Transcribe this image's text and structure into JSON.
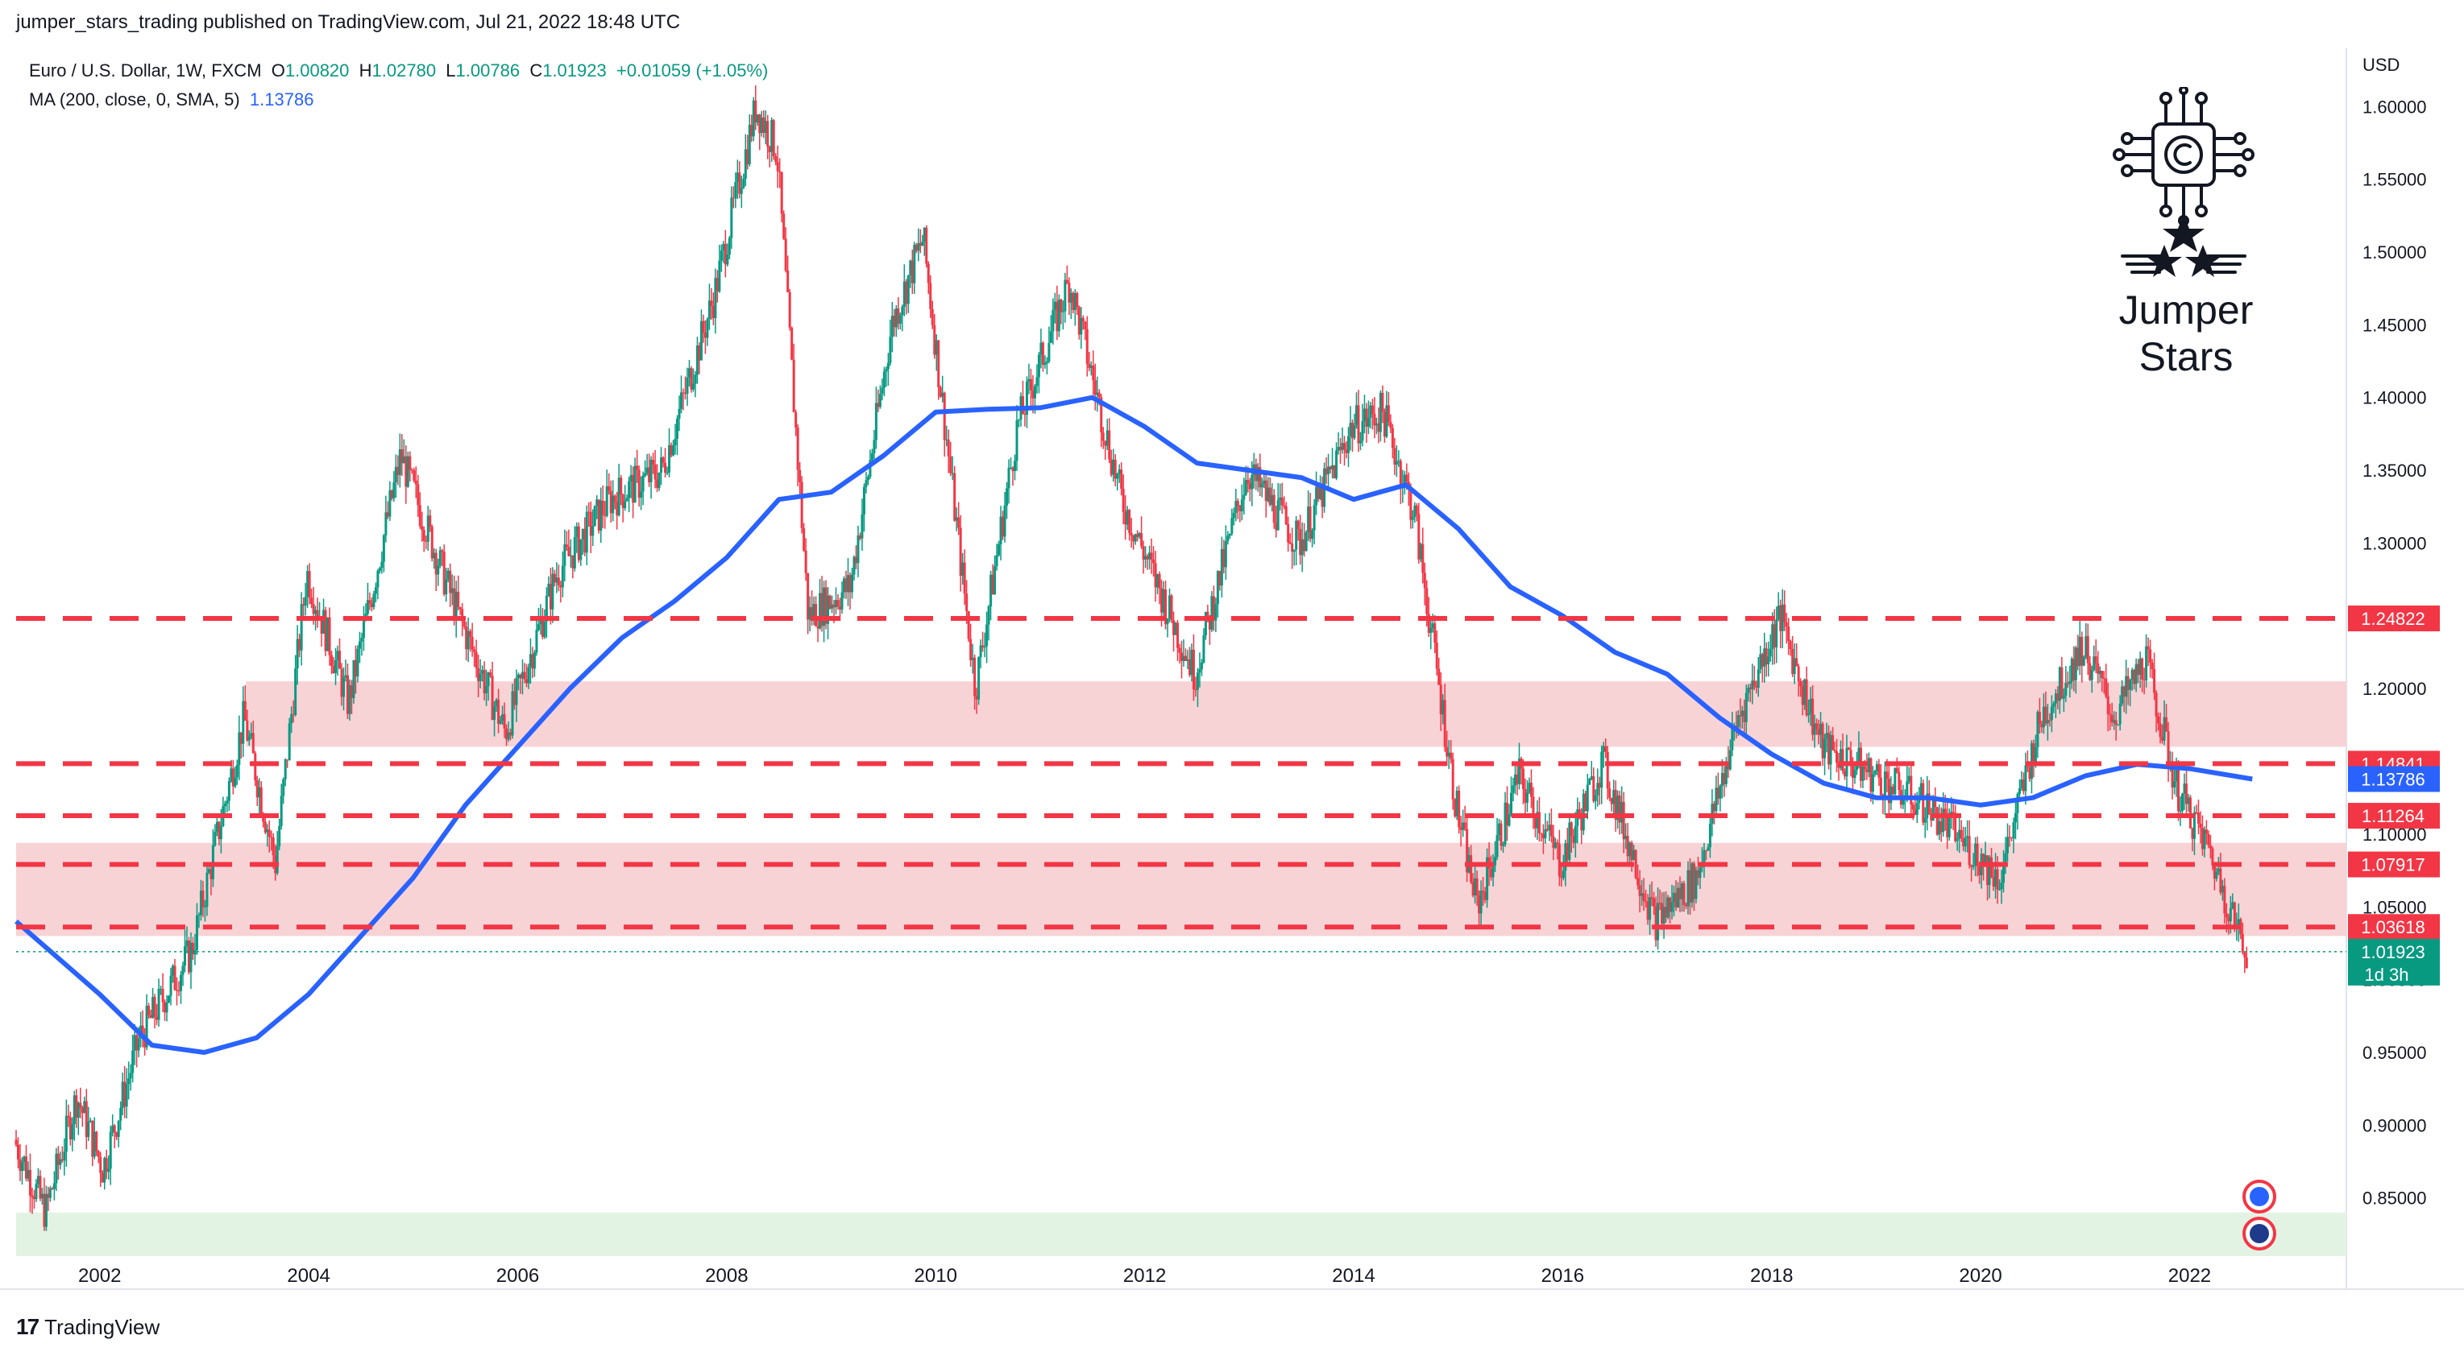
{
  "header": {
    "published_by": "jumper_stars_trading published on TradingView.com, Jul 21, 2022 18:48 UTC"
  },
  "legend": {
    "symbol": "Euro / U.S. Dollar, 1W, FXCM",
    "o_label": "O",
    "o_value": "1.00820",
    "h_label": "H",
    "h_value": "1.02780",
    "l_label": "L",
    "l_value": "1.00786",
    "c_label": "C",
    "c_value": "1.01923",
    "change": "+0.01059 (+1.05%)",
    "ma_label": "MA (200, close, 0, SMA, 5)",
    "ma_value": "1.13786"
  },
  "brand": {
    "name": "Jumper Stars",
    "logo_icon": "chip-star-logo-icon"
  },
  "footer": {
    "logo_text": "TradingView",
    "logo_icon": "tradingview-logo-icon"
  },
  "colors": {
    "up": "#089981",
    "down": "#f23645",
    "ma": "#2962ff",
    "level_line": "#f23645",
    "zone": "#f8d3d6",
    "green_zone": "#e3f3e3"
  },
  "chart_data": {
    "type": "candlestick",
    "title": "Euro / U.S. Dollar, 1W, FXCM",
    "currency_label": "USD",
    "x_range": [
      2001.2,
      2023.5
    ],
    "y_range": [
      0.81,
      1.64
    ],
    "x_ticks": [
      "2002",
      "2004",
      "2006",
      "2008",
      "2010",
      "2012",
      "2014",
      "2016",
      "2018",
      "2020",
      "2022"
    ],
    "y_ticks": [
      "0.85000",
      "0.90000",
      "0.95000",
      "1.00000",
      "1.05000",
      "1.10000",
      "1.15000",
      "1.20000",
      "1.25000",
      "1.30000",
      "1.35000",
      "1.40000",
      "1.45000",
      "1.50000",
      "1.55000",
      "1.60000"
    ],
    "price_path": [
      [
        2001.2,
        0.89
      ],
      [
        2001.5,
        0.84
      ],
      [
        2001.8,
        0.92
      ],
      [
        2002.05,
        0.87
      ],
      [
        2002.4,
        0.96
      ],
      [
        2002.9,
        1.02
      ],
      [
        2003.4,
        1.18
      ],
      [
        2003.7,
        1.08
      ],
      [
        2004.0,
        1.28
      ],
      [
        2004.4,
        1.19
      ],
      [
        2004.9,
        1.36
      ],
      [
        2005.4,
        1.26
      ],
      [
        2005.9,
        1.17
      ],
      [
        2006.4,
        1.28
      ],
      [
        2006.9,
        1.33
      ],
      [
        2007.4,
        1.35
      ],
      [
        2007.9,
        1.47
      ],
      [
        2008.3,
        1.6
      ],
      [
        2008.5,
        1.57
      ],
      [
        2008.8,
        1.25
      ],
      [
        2009.2,
        1.27
      ],
      [
        2009.6,
        1.45
      ],
      [
        2009.9,
        1.51
      ],
      [
        2010.4,
        1.2
      ],
      [
        2010.8,
        1.38
      ],
      [
        2011.3,
        1.48
      ],
      [
        2011.8,
        1.33
      ],
      [
        2012.5,
        1.21
      ],
      [
        2013.0,
        1.35
      ],
      [
        2013.5,
        1.3
      ],
      [
        2014.0,
        1.38
      ],
      [
        2014.3,
        1.39
      ],
      [
        2014.6,
        1.32
      ],
      [
        2015.0,
        1.12
      ],
      [
        2015.2,
        1.05
      ],
      [
        2015.6,
        1.14
      ],
      [
        2016.0,
        1.08
      ],
      [
        2016.4,
        1.15
      ],
      [
        2016.9,
        1.04
      ],
      [
        2017.3,
        1.07
      ],
      [
        2017.7,
        1.18
      ],
      [
        2018.1,
        1.25
      ],
      [
        2018.5,
        1.16
      ],
      [
        2019.0,
        1.14
      ],
      [
        2019.5,
        1.12
      ],
      [
        2020.2,
        1.07
      ],
      [
        2020.6,
        1.18
      ],
      [
        2021.0,
        1.23
      ],
      [
        2021.3,
        1.18
      ],
      [
        2021.6,
        1.22
      ],
      [
        2021.9,
        1.13
      ],
      [
        2022.2,
        1.09
      ],
      [
        2022.45,
        1.04
      ],
      [
        2022.55,
        1.019
      ]
    ],
    "ma_series": {
      "name": "MA (200, close, 0, SMA, 5)",
      "points": [
        [
          2001.2,
          1.04
        ],
        [
          2002.0,
          0.99
        ],
        [
          2002.5,
          0.955
        ],
        [
          2003.0,
          0.95
        ],
        [
          2003.5,
          0.96
        ],
        [
          2004.0,
          0.99
        ],
        [
          2004.5,
          1.03
        ],
        [
          2005.0,
          1.07
        ],
        [
          2005.5,
          1.12
        ],
        [
          2006.0,
          1.16
        ],
        [
          2006.5,
          1.2
        ],
        [
          2007.0,
          1.235
        ],
        [
          2007.5,
          1.26
        ],
        [
          2008.0,
          1.29
        ],
        [
          2008.5,
          1.33
        ],
        [
          2009.0,
          1.335
        ],
        [
          2009.5,
          1.36
        ],
        [
          2010.0,
          1.39
        ],
        [
          2010.5,
          1.392
        ],
        [
          2011.0,
          1.393
        ],
        [
          2011.5,
          1.4
        ],
        [
          2012.0,
          1.38
        ],
        [
          2012.5,
          1.355
        ],
        [
          2013.0,
          1.35
        ],
        [
          2013.5,
          1.345
        ],
        [
          2014.0,
          1.33
        ],
        [
          2014.5,
          1.34
        ],
        [
          2015.0,
          1.31
        ],
        [
          2015.5,
          1.27
        ],
        [
          2016.0,
          1.25
        ],
        [
          2016.5,
          1.225
        ],
        [
          2017.0,
          1.21
        ],
        [
          2017.5,
          1.18
        ],
        [
          2018.0,
          1.155
        ],
        [
          2018.5,
          1.135
        ],
        [
          2019.0,
          1.125
        ],
        [
          2019.5,
          1.125
        ],
        [
          2020.0,
          1.12
        ],
        [
          2020.5,
          1.125
        ],
        [
          2021.0,
          1.14
        ],
        [
          2021.5,
          1.148
        ],
        [
          2022.0,
          1.145
        ],
        [
          2022.6,
          1.13786
        ]
      ]
    },
    "levels": [
      {
        "value": 1.24822,
        "label": "1.24822"
      },
      {
        "value": 1.14841,
        "label": "1.14841"
      },
      {
        "value": 1.11264,
        "label": "1.11264"
      },
      {
        "value": 1.07917,
        "label": "1.07917"
      },
      {
        "value": 1.03618,
        "label": "1.03618"
      }
    ],
    "zones": [
      {
        "from": 1.16,
        "to": 1.205,
        "x_start": 2003.4
      },
      {
        "from": 1.03,
        "to": 1.094,
        "x_start": 2001.2
      }
    ],
    "green_zone": {
      "from": 0.81,
      "to": 0.84
    },
    "ma_label": {
      "value": 1.13786,
      "label": "1.13786"
    },
    "last_price": {
      "value": 1.01923,
      "label": "1.01923",
      "countdown": "1d 3h"
    },
    "grid": false
  }
}
